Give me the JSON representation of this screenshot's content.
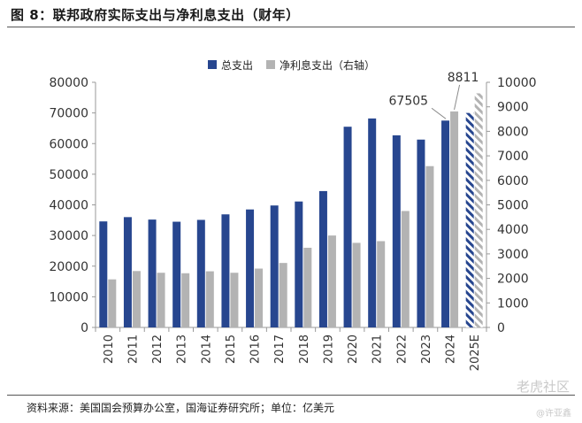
{
  "title": "图 8：联邦政府实际支出与净利息支出（财年）",
  "source": "资料来源：美国国会预算办公室，国海证券研究所；单位：亿美元",
  "watermark": "老虎社区",
  "watermark_handle": "@许亚鑫",
  "colors": {
    "total": "#27468f",
    "interest": "#b3b3b3",
    "axis": "#999999",
    "forecast_stripe": "#27468f",
    "forecast_interest_stripe": "#b3b3b3"
  },
  "chart_data": {
    "type": "bar",
    "categories": [
      "2010",
      "2011",
      "2012",
      "2013",
      "2014",
      "2015",
      "2016",
      "2017",
      "2018",
      "2019",
      "2020",
      "2021",
      "2022",
      "2023",
      "2024",
      "2025E"
    ],
    "series": [
      {
        "name": "总支出",
        "axis": "left",
        "values": [
          34600,
          36000,
          35200,
          34500,
          35100,
          36900,
          38500,
          39800,
          41100,
          44500,
          65500,
          68200,
          62700,
          61300,
          67505,
          70000
        ]
      },
      {
        "name": "净利息支出（右轴）",
        "axis": "right",
        "values": [
          1960,
          2300,
          2230,
          2210,
          2290,
          2230,
          2400,
          2630,
          3250,
          3750,
          3450,
          3520,
          4750,
          6580,
          8811,
          9550
        ]
      }
    ],
    "forecast_category": "2025E",
    "y_left": {
      "min": 0,
      "max": 80000,
      "ticks": [
        0,
        10000,
        20000,
        30000,
        40000,
        50000,
        60000,
        70000,
        80000
      ]
    },
    "y_right": {
      "min": 0,
      "max": 10000,
      "ticks": [
        0,
        1000,
        2000,
        3000,
        4000,
        5000,
        6000,
        7000,
        8000,
        9000,
        10000
      ]
    },
    "annotations": [
      {
        "text": "67505",
        "series": 0,
        "category": "2024"
      },
      {
        "text": "8811",
        "series": 1,
        "category": "2024"
      }
    ],
    "legend_position": "top"
  }
}
